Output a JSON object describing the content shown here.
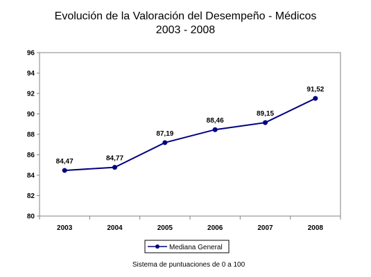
{
  "chart_data": {
    "type": "line",
    "title": "Evolución de la Valoración del Desempeño - Médicos",
    "subtitle": "2003 - 2008",
    "xlabel": "",
    "ylabel": "",
    "categories": [
      "2003",
      "2004",
      "2005",
      "2006",
      "2007",
      "2008"
    ],
    "series": [
      {
        "name": "Mediana General",
        "values": [
          84.47,
          84.77,
          87.19,
          88.46,
          89.15,
          91.52
        ],
        "labels": [
          "84,47",
          "84,77",
          "87,19",
          "88,46",
          "89,15",
          "91,52"
        ],
        "color": "#000080"
      }
    ],
    "ylim": [
      80,
      96
    ],
    "yticks": [
      "80",
      "82",
      "84",
      "86",
      "88",
      "90",
      "92",
      "94",
      "96"
    ],
    "grid": false,
    "legend_position": "bottom",
    "footnote": "Sistema de puntuaciones de 0 a 100",
    "plot_background": "#ffffff",
    "axis_color": "#808080"
  }
}
